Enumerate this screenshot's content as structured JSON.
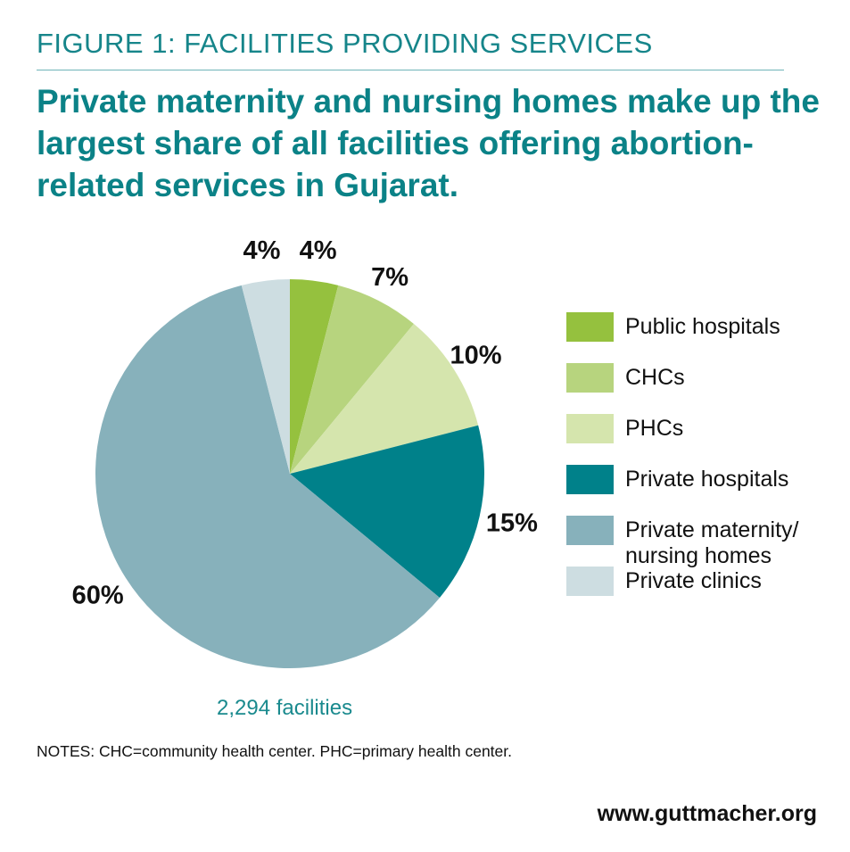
{
  "figure_label": "FIGURE 1: FACILITIES PROVIDING SERVICES",
  "headline": "Private maternity and nursing homes make up the largest share of all facilities offering abortion-related services in Gujarat.",
  "chart_data": {
    "type": "pie",
    "slices": [
      {
        "label": "Public hospitals",
        "value": 4,
        "value_label": "4%",
        "color": "#95c13e"
      },
      {
        "label": "CHCs",
        "value": 7,
        "value_label": "7%",
        "color": "#b7d47e"
      },
      {
        "label": "PHCs",
        "value": 10,
        "value_label": "10%",
        "color": "#d5e5ad"
      },
      {
        "label": "Private hospitals",
        "value": 15,
        "value_label": "15%",
        "color": "#00818a"
      },
      {
        "label": "Private maternity/\nnursing homes",
        "value": 60,
        "value_label": "60%",
        "color": "#87b1bb"
      },
      {
        "label": "Private clinics",
        "value": 4,
        "value_label": "4%",
        "color": "#cddde1"
      }
    ],
    "legend_position": "right",
    "total_label": "2,294 facilities"
  },
  "notes": "NOTES: CHC=community health center. PHC=primary health center.",
  "url": "www.guttmacher.org"
}
